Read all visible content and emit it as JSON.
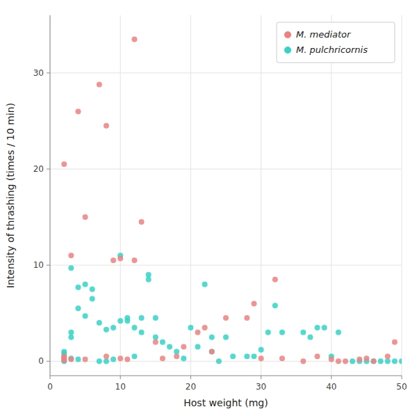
{
  "chart_data": {
    "type": "scatter",
    "title": "",
    "xlabel": "Host weight (mg)",
    "ylabel": "Intensity of thrashing (times / 10 min)",
    "xlim": [
      0,
      50
    ],
    "ylim": [
      -1.5,
      36
    ],
    "xticks": [
      0,
      10,
      20,
      30,
      40,
      50
    ],
    "yticks": [
      0,
      10,
      20,
      30
    ],
    "grid": true,
    "legend": "upper right",
    "series": [
      {
        "name": "M. mediator",
        "color": "#F08080",
        "x": [
          2,
          2,
          2,
          2,
          3,
          3,
          4,
          5,
          5,
          7,
          8,
          8,
          9,
          10,
          10,
          11,
          12,
          12,
          13,
          15,
          16,
          18,
          19,
          21,
          22,
          23,
          25,
          28,
          29,
          30,
          32,
          33,
          36,
          38,
          40,
          41,
          42,
          44,
          45,
          46,
          48,
          49
        ],
        "values": [
          20.5,
          0.3,
          0.5,
          0.1,
          11,
          0.2,
          26,
          15,
          0.2,
          28.8,
          24.5,
          0.5,
          10.5,
          10.7,
          0.3,
          0.2,
          33.5,
          10.5,
          14.5,
          2,
          0.3,
          0.5,
          1.5,
          3,
          3.5,
          1,
          4.5,
          4.5,
          6,
          0.3,
          8.5,
          0.3,
          0,
          0.5,
          0.2,
          0,
          0,
          0.2,
          0.3,
          0,
          0.5,
          2
        ]
      },
      {
        "name": "M. pulchricornis",
        "color": "#30D5C8",
        "x": [
          2,
          2,
          2,
          2,
          2,
          2,
          3,
          3,
          3,
          3,
          4,
          4,
          4,
          5,
          5,
          6,
          6,
          7,
          7,
          8,
          8,
          9,
          9,
          10,
          10,
          11,
          11,
          12,
          12,
          13,
          13,
          14,
          14,
          15,
          15,
          16,
          17,
          18,
          19,
          20,
          21,
          22,
          23,
          23,
          24,
          25,
          26,
          28,
          29,
          30,
          31,
          32,
          33,
          36,
          37,
          38,
          39,
          40,
          41,
          43,
          44,
          45,
          46,
          47,
          48,
          49,
          50
        ],
        "values": [
          0.5,
          1.0,
          0.8,
          0.3,
          0.1,
          0,
          9.7,
          3,
          2.5,
          0.3,
          5.5,
          7.7,
          0.2,
          4.7,
          8,
          7.5,
          6.5,
          4,
          0,
          3.3,
          0,
          3.5,
          0.2,
          11,
          4.2,
          4.5,
          4.2,
          3.5,
          0.5,
          4.5,
          3,
          9,
          8.5,
          4.5,
          2.5,
          2,
          1.5,
          1,
          0.3,
          3.5,
          1.5,
          8,
          1,
          2.5,
          0,
          2.5,
          0.5,
          0.5,
          0.5,
          1.2,
          3,
          5.8,
          3,
          3,
          2.5,
          3.5,
          3.5,
          0.5,
          3,
          0,
          0,
          0,
          0,
          0,
          0,
          0,
          0
        ]
      }
    ]
  }
}
